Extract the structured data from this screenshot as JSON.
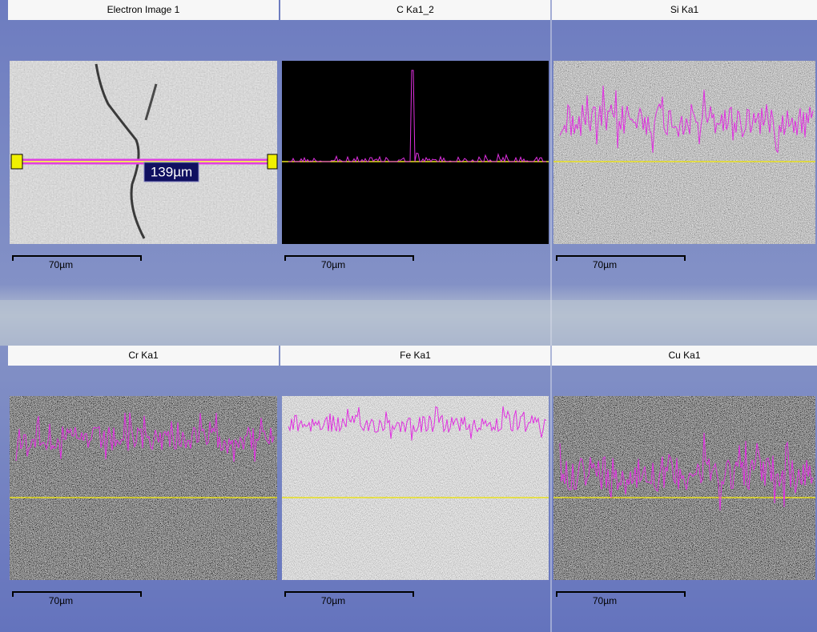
{
  "panels": [
    {
      "title": "Electron Image 1",
      "scale_label": "70µm",
      "annotation": "139µm"
    },
    {
      "title": "C Ka1_2",
      "scale_label": "70µm"
    },
    {
      "title": "Si Ka1",
      "scale_label": "70µm"
    },
    {
      "title": "Cr Ka1",
      "scale_label": "70µm"
    },
    {
      "title": "Fe Ka1",
      "scale_label": "70µm"
    },
    {
      "title": "Cu Ka1",
      "scale_label": "70µm"
    }
  ]
}
